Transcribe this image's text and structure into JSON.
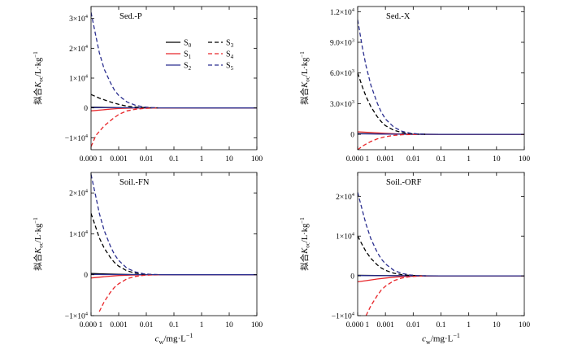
{
  "x_axis_label": {
    "main": "c",
    "sub": "w",
    "rest": "/mg·L",
    "sup": "−1"
  },
  "y_axis_label": {
    "pre": "拟合",
    "main": "K",
    "sub": "oc",
    "rest": "/L·kg",
    "sup": "−1"
  },
  "legend": [
    {
      "label": "S",
      "sub": "0",
      "color": "#000000",
      "dash": false
    },
    {
      "label": "S",
      "sub": "3",
      "color": "#000000",
      "dash": true
    },
    {
      "label": "S",
      "sub": "1",
      "color": "#e8262a",
      "dash": false
    },
    {
      "label": "S",
      "sub": "4",
      "color": "#e8262a",
      "dash": true
    },
    {
      "label": "S",
      "sub": "2",
      "color": "#2b2f8f",
      "dash": false
    },
    {
      "label": "S",
      "sub": "5",
      "color": "#2b2f8f",
      "dash": true
    }
  ],
  "chart_data": [
    {
      "type": "line",
      "title": "Sed.-P",
      "x_scale": "log",
      "xlim": [
        0.0001,
        100
      ],
      "x_ticks": [
        "0.000 1",
        "0.001",
        "0.01",
        "0.1",
        "1",
        "10",
        "100"
      ],
      "ylim": [
        -14000,
        34000
      ],
      "y_ticks": [
        {
          "value": -10000,
          "label": "−1×10",
          "sup": "4"
        },
        {
          "value": 0,
          "label": "0",
          "sup": ""
        },
        {
          "value": 10000,
          "label": "1×10",
          "sup": "4"
        },
        {
          "value": 20000,
          "label": "2×10",
          "sup": "4"
        },
        {
          "value": 30000,
          "label": "3×10",
          "sup": "4"
        }
      ],
      "series": [
        {
          "name": "S0",
          "color": "#000000",
          "dash": false,
          "x": [
            0.0001,
            0.0002,
            0.0005,
            0.001,
            0.003,
            0.01,
            0.1,
            1,
            10,
            100
          ],
          "y": [
            250,
            200,
            130,
            80,
            40,
            15,
            3,
            0,
            0,
            0
          ]
        },
        {
          "name": "S1",
          "color": "#e8262a",
          "dash": false,
          "x": [
            0.0001,
            0.0002,
            0.0005,
            0.001,
            0.003,
            0.01,
            0.1,
            1,
            10,
            100
          ],
          "y": [
            -1000,
            -750,
            -400,
            -200,
            -70,
            -20,
            -3,
            0,
            0,
            0
          ]
        },
        {
          "name": "S2",
          "color": "#2b2f8f",
          "dash": false,
          "x": [
            0.0001,
            0.0005,
            0.001,
            0.01,
            0.1,
            1,
            10,
            100
          ],
          "y": [
            100,
            80,
            60,
            20,
            5,
            0,
            0,
            0
          ]
        },
        {
          "name": "S3",
          "color": "#000000",
          "dash": true,
          "x": [
            0.0001,
            0.0002,
            0.0005,
            0.001,
            0.002,
            0.005,
            0.01,
            0.03
          ],
          "y": [
            4500,
            3300,
            2000,
            1200,
            600,
            200,
            80,
            15
          ]
        },
        {
          "name": "S4",
          "color": "#e8262a",
          "dash": true,
          "x": [
            0.0001,
            0.00015,
            0.0003,
            0.0006,
            0.001,
            0.002,
            0.004,
            0.008,
            0.015,
            0.03
          ],
          "y": [
            -13000,
            -9200,
            -6000,
            -3700,
            -2200,
            -1000,
            -450,
            -180,
            -60,
            -10
          ]
        },
        {
          "name": "S5",
          "color": "#2b2f8f",
          "dash": true,
          "x": [
            0.0001,
            0.00015,
            0.0002,
            0.0003,
            0.0005,
            0.0007,
            0.001,
            0.002,
            0.004,
            0.008,
            0.015,
            0.03
          ],
          "y": [
            32000,
            24000,
            18500,
            13000,
            8500,
            6000,
            4200,
            2000,
            900,
            350,
            120,
            20
          ]
        }
      ]
    },
    {
      "type": "line",
      "title": "Sed.-X",
      "x_scale": "log",
      "xlim": [
        0.0001,
        100
      ],
      "x_ticks": [
        "0.000 1",
        "0.001",
        "0.01",
        "0.1",
        "1",
        "10",
        "100"
      ],
      "ylim": [
        -1500,
        12500
      ],
      "y_ticks": [
        {
          "value": 0,
          "label": "0",
          "sup": ""
        },
        {
          "value": 3000,
          "label": "3.0×10",
          "sup": "3"
        },
        {
          "value": 6000,
          "label": "6.0×10",
          "sup": "3"
        },
        {
          "value": 9000,
          "label": "9.0×10",
          "sup": "3"
        },
        {
          "value": 12000,
          "label": "1.2×10",
          "sup": "4"
        }
      ],
      "series": [
        {
          "name": "S0",
          "color": "#000000",
          "dash": false,
          "x": [
            0.0001,
            0.0005,
            0.001,
            0.01,
            0.1,
            1,
            10,
            100
          ],
          "y": [
            80,
            50,
            35,
            10,
            2,
            0,
            0,
            0
          ]
        },
        {
          "name": "S1",
          "color": "#e8262a",
          "dash": false,
          "x": [
            0.0001,
            0.0003,
            0.001,
            0.003,
            0.01,
            0.1,
            1,
            10,
            100
          ],
          "y": [
            250,
            180,
            100,
            40,
            10,
            2,
            0,
            0,
            0
          ]
        },
        {
          "name": "S2",
          "color": "#2b2f8f",
          "dash": false,
          "x": [
            0.0001,
            0.001,
            0.01,
            0.1,
            1,
            10,
            100
          ],
          "y": [
            50,
            30,
            10,
            2,
            0,
            0,
            0
          ]
        },
        {
          "name": "S3",
          "color": "#000000",
          "dash": true,
          "x": [
            0.0001,
            0.00015,
            0.0002,
            0.0003,
            0.0005,
            0.0007,
            0.001,
            0.002,
            0.004,
            0.008,
            0.015,
            0.03
          ],
          "y": [
            6000,
            4600,
            3700,
            2700,
            1750,
            1250,
            850,
            400,
            170,
            60,
            20,
            5
          ]
        },
        {
          "name": "S4",
          "color": "#e8262a",
          "dash": true,
          "x": [
            0.0001,
            0.00015,
            0.0002,
            0.0003,
            0.0005,
            0.001,
            0.002,
            0.004,
            0.008,
            0.015
          ],
          "y": [
            -1500,
            -1150,
            -950,
            -700,
            -450,
            -230,
            -100,
            -40,
            -15,
            -3
          ]
        },
        {
          "name": "S5",
          "color": "#2b2f8f",
          "dash": true,
          "x": [
            0.0001,
            0.00015,
            0.0002,
            0.0003,
            0.0005,
            0.0007,
            0.001,
            0.002,
            0.004,
            0.008,
            0.015,
            0.03
          ],
          "y": [
            11200,
            8400,
            6700,
            4800,
            3100,
            2200,
            1500,
            700,
            300,
            110,
            35,
            8
          ]
        }
      ]
    },
    {
      "type": "line",
      "title": "Soil.-FN",
      "x_scale": "log",
      "xlim": [
        0.0001,
        100
      ],
      "x_ticks": [
        "0.000 1",
        "0.001",
        "0.01",
        "0.1",
        "1",
        "10",
        "100"
      ],
      "ylim": [
        -10000,
        25000
      ],
      "y_ticks": [
        {
          "value": -10000,
          "label": "−1×10",
          "sup": "4"
        },
        {
          "value": 0,
          "label": "0",
          "sup": ""
        },
        {
          "value": 10000,
          "label": "1×10",
          "sup": "4"
        },
        {
          "value": 20000,
          "label": "2×10",
          "sup": "4"
        }
      ],
      "series": [
        {
          "name": "S0",
          "color": "#000000",
          "dash": false,
          "x": [
            0.0001,
            0.0002,
            0.0005,
            0.001,
            0.003,
            0.01,
            0.1,
            1,
            10,
            100
          ],
          "y": [
            300,
            240,
            160,
            100,
            50,
            15,
            3,
            0,
            0,
            0
          ]
        },
        {
          "name": "S1",
          "color": "#e8262a",
          "dash": false,
          "x": [
            0.0001,
            0.0002,
            0.0005,
            0.001,
            0.003,
            0.01,
            0.1,
            1,
            10,
            100
          ],
          "y": [
            -800,
            -600,
            -350,
            -200,
            -80,
            -25,
            -3,
            0,
            0,
            0
          ]
        },
        {
          "name": "S2",
          "color": "#2b2f8f",
          "dash": false,
          "x": [
            0.0001,
            0.001,
            0.01,
            0.1,
            1,
            10,
            100
          ],
          "y": [
            60,
            40,
            15,
            3,
            0,
            0,
            0
          ]
        },
        {
          "name": "S3",
          "color": "#000000",
          "dash": true,
          "x": [
            0.0001,
            0.00015,
            0.0002,
            0.0003,
            0.0005,
            0.0007,
            0.001,
            0.002,
            0.004,
            0.008,
            0.015,
            0.03
          ],
          "y": [
            15000,
            11500,
            9000,
            6500,
            4200,
            3000,
            2100,
            950,
            400,
            150,
            50,
            10
          ]
        },
        {
          "name": "S4",
          "color": "#e8262a",
          "dash": true,
          "x": [
            0.0002,
            0.0003,
            0.0005,
            0.0007,
            0.001,
            0.002,
            0.004,
            0.008,
            0.015,
            0.03
          ],
          "y": [
            -9000,
            -6600,
            -4300,
            -3100,
            -2200,
            -1000,
            -420,
            -150,
            -50,
            -10
          ]
        },
        {
          "name": "S5",
          "color": "#2b2f8f",
          "dash": true,
          "x": [
            0.0001,
            0.00015,
            0.0002,
            0.0003,
            0.0005,
            0.0007,
            0.001,
            0.002,
            0.004,
            0.008,
            0.015,
            0.03
          ],
          "y": [
            24500,
            19000,
            15000,
            10800,
            7000,
            5000,
            3500,
            1600,
            700,
            250,
            80,
            15
          ]
        }
      ]
    },
    {
      "type": "line",
      "title": "Soil.-ORF",
      "x_scale": "log",
      "xlim": [
        0.0001,
        100
      ],
      "x_ticks": [
        "0.000 1",
        "0.001",
        "0.01",
        "0.1",
        "1",
        "10",
        "100"
      ],
      "ylim": [
        -10000,
        26000
      ],
      "y_ticks": [
        {
          "value": -10000,
          "label": "−1×10",
          "sup": "4"
        },
        {
          "value": 0,
          "label": "0",
          "sup": ""
        },
        {
          "value": 10000,
          "label": "1×10",
          "sup": "4"
        },
        {
          "value": 20000,
          "label": "2×10",
          "sup": "4"
        }
      ],
      "series": [
        {
          "name": "S0",
          "color": "#000000",
          "dash": false,
          "x": [
            0.0001,
            0.0005,
            0.001,
            0.01,
            0.1,
            1,
            10,
            100
          ],
          "y": [
            150,
            90,
            60,
            15,
            3,
            0,
            0,
            0
          ]
        },
        {
          "name": "S1",
          "color": "#e8262a",
          "dash": false,
          "x": [
            0.0001,
            0.0002,
            0.0005,
            0.001,
            0.002,
            0.005,
            0.01,
            0.03,
            0.1,
            1,
            10,
            100
          ],
          "y": [
            -1500,
            -1200,
            -800,
            -550,
            -330,
            -150,
            -70,
            -20,
            -5,
            0,
            0,
            0
          ]
        },
        {
          "name": "S2",
          "color": "#2b2f8f",
          "dash": false,
          "x": [
            0.0001,
            0.001,
            0.01,
            0.1,
            1,
            10,
            100
          ],
          "y": [
            80,
            50,
            15,
            3,
            0,
            0,
            0
          ]
        },
        {
          "name": "S3",
          "color": "#000000",
          "dash": true,
          "x": [
            0.0001,
            0.00015,
            0.0002,
            0.0003,
            0.0005,
            0.0007,
            0.001,
            0.002,
            0.004,
            0.008,
            0.015,
            0.03
          ],
          "y": [
            10000,
            7700,
            6100,
            4400,
            2800,
            2000,
            1400,
            650,
            280,
            100,
            35,
            8
          ]
        },
        {
          "name": "S4",
          "color": "#e8262a",
          "dash": true,
          "x": [
            0.0002,
            0.0003,
            0.0005,
            0.0007,
            0.001,
            0.002,
            0.004,
            0.008,
            0.015,
            0.03
          ],
          "y": [
            -10000,
            -7500,
            -5000,
            -3600,
            -2600,
            -1200,
            -520,
            -190,
            -65,
            -12
          ]
        },
        {
          "name": "S5",
          "color": "#2b2f8f",
          "dash": true,
          "x": [
            0.0001,
            0.00015,
            0.0002,
            0.0003,
            0.0005,
            0.0007,
            0.001,
            0.002,
            0.004,
            0.008,
            0.015,
            0.03
          ],
          "y": [
            21000,
            16300,
            13000,
            9300,
            6000,
            4300,
            3000,
            1400,
            600,
            220,
            70,
            14
          ]
        }
      ]
    }
  ]
}
